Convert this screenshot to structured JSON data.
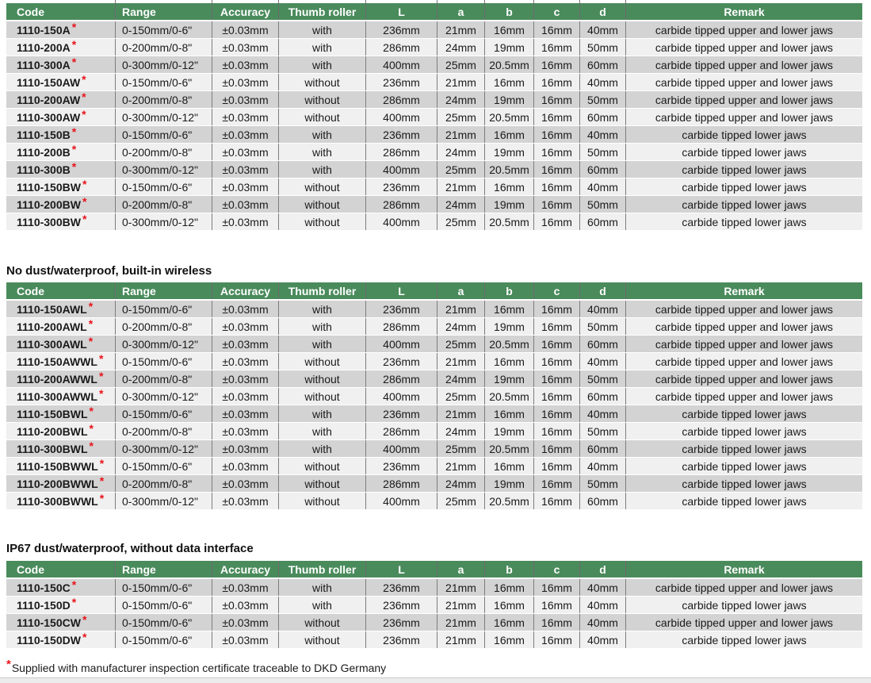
{
  "colors": {
    "header_bg": "#4a8b5c",
    "header_text": "#ffffff",
    "row_odd": "#d3d3d3",
    "row_even": "#f0f0f0",
    "column_divider": "#7d7d7d",
    "asterisk_red": "#e8131a",
    "bottom_bar": "#ececec"
  },
  "columns": [
    "Code",
    "Range",
    "Accuracy",
    "Thumb roller",
    "L",
    "a",
    "b",
    "c",
    "d",
    "Remark"
  ],
  "sections": [
    {
      "title": null,
      "rows": [
        {
          "code": "1110-150A",
          "asterisk": "*",
          "range": "0-150mm/0-6\"",
          "accuracy": "±0.03mm",
          "thumb_roller": "with",
          "l": "236mm",
          "a": "21mm",
          "b": "16mm",
          "c": "16mm",
          "d": "40mm",
          "remark": "carbide tipped upper and lower jaws"
        },
        {
          "code": "1110-200A",
          "asterisk": "*",
          "range": "0-200mm/0-8\"",
          "accuracy": "±0.03mm",
          "thumb_roller": "with",
          "l": "286mm",
          "a": "24mm",
          "b": "19mm",
          "c": "16mm",
          "d": "50mm",
          "remark": "carbide tipped upper and lower jaws"
        },
        {
          "code": "1110-300A",
          "asterisk": "*",
          "range": "0-300mm/0-12\"",
          "accuracy": "±0.03mm",
          "thumb_roller": "with",
          "l": "400mm",
          "a": "25mm",
          "b": "20.5mm",
          "c": "16mm",
          "d": "60mm",
          "remark": "carbide tipped upper and lower jaws"
        },
        {
          "code": "1110-150AW",
          "asterisk": "*",
          "range": "0-150mm/0-6\"",
          "accuracy": "±0.03mm",
          "thumb_roller": "without",
          "l": "236mm",
          "a": "21mm",
          "b": "16mm",
          "c": "16mm",
          "d": "40mm",
          "remark": "carbide tipped upper and lower jaws"
        },
        {
          "code": "1110-200AW",
          "asterisk": "*",
          "range": "0-200mm/0-8\"",
          "accuracy": "±0.03mm",
          "thumb_roller": "without",
          "l": "286mm",
          "a": "24mm",
          "b": "19mm",
          "c": "16mm",
          "d": "50mm",
          "remark": "carbide tipped upper and lower jaws"
        },
        {
          "code": "1110-300AW",
          "asterisk": "*",
          "range": "0-300mm/0-12\"",
          "accuracy": "±0.03mm",
          "thumb_roller": "without",
          "l": "400mm",
          "a": "25mm",
          "b": "20.5mm",
          "c": "16mm",
          "d": "60mm",
          "remark": "carbide tipped upper and lower jaws"
        },
        {
          "code": "1110-150B",
          "asterisk": "*",
          "range": "0-150mm/0-6\"",
          "accuracy": "±0.03mm",
          "thumb_roller": "with",
          "l": "236mm",
          "a": "21mm",
          "b": "16mm",
          "c": "16mm",
          "d": "40mm",
          "remark": "carbide tipped lower jaws"
        },
        {
          "code": "1110-200B",
          "asterisk": "*",
          "range": "0-200mm/0-8\"",
          "accuracy": "±0.03mm",
          "thumb_roller": "with",
          "l": "286mm",
          "a": "24mm",
          "b": "19mm",
          "c": "16mm",
          "d": "50mm",
          "remark": "carbide tipped lower jaws"
        },
        {
          "code": "1110-300B",
          "asterisk": "*",
          "range": "0-300mm/0-12\"",
          "accuracy": "±0.03mm",
          "thumb_roller": "with",
          "l": "400mm",
          "a": "25mm",
          "b": "20.5mm",
          "c": "16mm",
          "d": "60mm",
          "remark": "carbide tipped lower jaws"
        },
        {
          "code": "1110-150BW",
          "asterisk": "*",
          "range": "0-150mm/0-6\"",
          "accuracy": "±0.03mm",
          "thumb_roller": "without",
          "l": "236mm",
          "a": "21mm",
          "b": "16mm",
          "c": "16mm",
          "d": "40mm",
          "remark": "carbide tipped lower jaws"
        },
        {
          "code": "1110-200BW",
          "asterisk": "*",
          "range": "0-200mm/0-8\"",
          "accuracy": "±0.03mm",
          "thumb_roller": "without",
          "l": "286mm",
          "a": "24mm",
          "b": "19mm",
          "c": "16mm",
          "d": "50mm",
          "remark": "carbide tipped lower jaws"
        },
        {
          "code": "1110-300BW",
          "asterisk": "*",
          "range": "0-300mm/0-12\"",
          "accuracy": "±0.03mm",
          "thumb_roller": "without",
          "l": "400mm",
          "a": "25mm",
          "b": "20.5mm",
          "c": "16mm",
          "d": "60mm",
          "remark": "carbide tipped lower jaws"
        }
      ]
    },
    {
      "title": "No dust/waterproof, built-in wireless",
      "rows": [
        {
          "code": "1110-150AWL",
          "asterisk": "*",
          "range": "0-150mm/0-6\"",
          "accuracy": "±0.03mm",
          "thumb_roller": "with",
          "l": "236mm",
          "a": "21mm",
          "b": "16mm",
          "c": "16mm",
          "d": "40mm",
          "remark": "carbide tipped upper and lower jaws"
        },
        {
          "code": "1110-200AWL",
          "asterisk": "*",
          "range": "0-200mm/0-8\"",
          "accuracy": "±0.03mm",
          "thumb_roller": "with",
          "l": "286mm",
          "a": "24mm",
          "b": "19mm",
          "c": "16mm",
          "d": "50mm",
          "remark": "carbide tipped upper and lower jaws"
        },
        {
          "code": "1110-300AWL",
          "asterisk": "*",
          "range": "0-300mm/0-12\"",
          "accuracy": "±0.03mm",
          "thumb_roller": "with",
          "l": "400mm",
          "a": "25mm",
          "b": "20.5mm",
          "c": "16mm",
          "d": "60mm",
          "remark": "carbide tipped upper and lower jaws"
        },
        {
          "code": "1110-150AWWL",
          "asterisk": "*",
          "range": "0-150mm/0-6\"",
          "accuracy": "±0.03mm",
          "thumb_roller": "without",
          "l": "236mm",
          "a": "21mm",
          "b": "16mm",
          "c": "16mm",
          "d": "40mm",
          "remark": "carbide tipped upper and lower jaws"
        },
        {
          "code": "1110-200AWWL",
          "asterisk": "*",
          "range": "0-200mm/0-8\"",
          "accuracy": "±0.03mm",
          "thumb_roller": "without",
          "l": "286mm",
          "a": "24mm",
          "b": "19mm",
          "c": "16mm",
          "d": "50mm",
          "remark": "carbide tipped upper and lower jaws"
        },
        {
          "code": "1110-300AWWL",
          "asterisk": "*",
          "range": "0-300mm/0-12\"",
          "accuracy": "±0.03mm",
          "thumb_roller": "without",
          "l": "400mm",
          "a": "25mm",
          "b": "20.5mm",
          "c": "16mm",
          "d": "60mm",
          "remark": "carbide tipped upper and lower jaws"
        },
        {
          "code": "1110-150BWL",
          "asterisk": "*",
          "range": "0-150mm/0-6\"",
          "accuracy": "±0.03mm",
          "thumb_roller": "with",
          "l": "236mm",
          "a": "21mm",
          "b": "16mm",
          "c": "16mm",
          "d": "40mm",
          "remark": "carbide tipped lower jaws"
        },
        {
          "code": "1110-200BWL",
          "asterisk": "*",
          "range": "0-200mm/0-8\"",
          "accuracy": "±0.03mm",
          "thumb_roller": "with",
          "l": "286mm",
          "a": "24mm",
          "b": "19mm",
          "c": "16mm",
          "d": "50mm",
          "remark": "carbide tipped lower jaws"
        },
        {
          "code": "1110-300BWL",
          "asterisk": "*",
          "range": "0-300mm/0-12\"",
          "accuracy": "±0.03mm",
          "thumb_roller": "with",
          "l": "400mm",
          "a": "25mm",
          "b": "20.5mm",
          "c": "16mm",
          "d": "60mm",
          "remark": "carbide tipped lower jaws"
        },
        {
          "code": "1110-150BWWL",
          "asterisk": "*",
          "range": "0-150mm/0-6\"",
          "accuracy": "±0.03mm",
          "thumb_roller": "without",
          "l": "236mm",
          "a": "21mm",
          "b": "16mm",
          "c": "16mm",
          "d": "40mm",
          "remark": "carbide tipped lower jaws"
        },
        {
          "code": "1110-200BWWL",
          "asterisk": "*",
          "range": "0-200mm/0-8\"",
          "accuracy": "±0.03mm",
          "thumb_roller": "without",
          "l": "286mm",
          "a": "24mm",
          "b": "19mm",
          "c": "16mm",
          "d": "50mm",
          "remark": "carbide tipped lower jaws"
        },
        {
          "code": "1110-300BWWL",
          "asterisk": "*",
          "range": "0-300mm/0-12\"",
          "accuracy": "±0.03mm",
          "thumb_roller": "without",
          "l": "400mm",
          "a": "25mm",
          "b": "20.5mm",
          "c": "16mm",
          "d": "60mm",
          "remark": "carbide tipped lower jaws"
        }
      ]
    },
    {
      "title": "IP67 dust/waterproof, without data interface",
      "rows": [
        {
          "code": "1110-150C",
          "asterisk": "*",
          "range": "0-150mm/0-6\"",
          "accuracy": "±0.03mm",
          "thumb_roller": "with",
          "l": "236mm",
          "a": "21mm",
          "b": "16mm",
          "c": "16mm",
          "d": "40mm",
          "remark": "carbide tipped upper and lower jaws"
        },
        {
          "code": "1110-150D",
          "asterisk": "*",
          "range": "0-150mm/0-6\"",
          "accuracy": "±0.03mm",
          "thumb_roller": "with",
          "l": "236mm",
          "a": "21mm",
          "b": "16mm",
          "c": "16mm",
          "d": "40mm",
          "remark": "carbide tipped lower jaws"
        },
        {
          "code": "1110-150CW",
          "asterisk": "*",
          "range": "0-150mm/0-6\"",
          "accuracy": "±0.03mm",
          "thumb_roller": "without",
          "l": "236mm",
          "a": "21mm",
          "b": "16mm",
          "c": "16mm",
          "d": "40mm",
          "remark": "carbide tipped upper and lower jaws"
        },
        {
          "code": "1110-150DW",
          "asterisk": "*",
          "range": "0-150mm/0-6\"",
          "accuracy": "±0.03mm",
          "thumb_roller": "without",
          "l": "236mm",
          "a": "21mm",
          "b": "16mm",
          "c": "16mm",
          "d": "40mm",
          "remark": "carbide tipped lower jaws"
        }
      ]
    }
  ],
  "footnote": {
    "asterisk": "*",
    "text": "Supplied with manufacturer inspection certificate traceable to DKD Germany"
  }
}
